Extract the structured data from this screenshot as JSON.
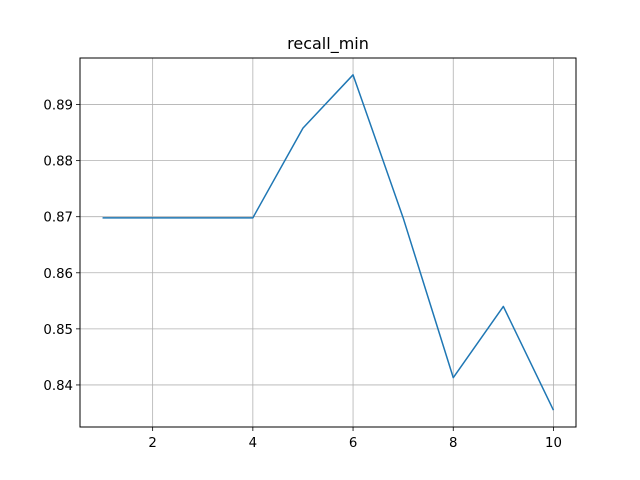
{
  "chart_data": {
    "type": "line",
    "title": "recall_min",
    "xlabel": "",
    "ylabel": "",
    "x": [
      1,
      2,
      3,
      4,
      5,
      6,
      7,
      8,
      9,
      10
    ],
    "series": [
      {
        "values": [
          0.8698,
          0.8698,
          0.8698,
          0.8698,
          0.8858,
          0.8953,
          0.8698,
          0.8413,
          0.854,
          0.8355
        ],
        "color": "#1f77b4"
      }
    ],
    "xticks": [
      2,
      4,
      6,
      8,
      10
    ],
    "xtick_labels": [
      "2",
      "4",
      "6",
      "8",
      "10"
    ],
    "yticks": [
      0.84,
      0.85,
      0.86,
      0.87,
      0.88,
      0.89
    ],
    "ytick_labels": [
      "0.84",
      "0.85",
      "0.86",
      "0.87",
      "0.88",
      "0.89"
    ],
    "xlim": [
      0.55,
      10.45
    ],
    "ylim": [
      0.8325,
      0.8983
    ],
    "grid": true,
    "legend": "none"
  }
}
